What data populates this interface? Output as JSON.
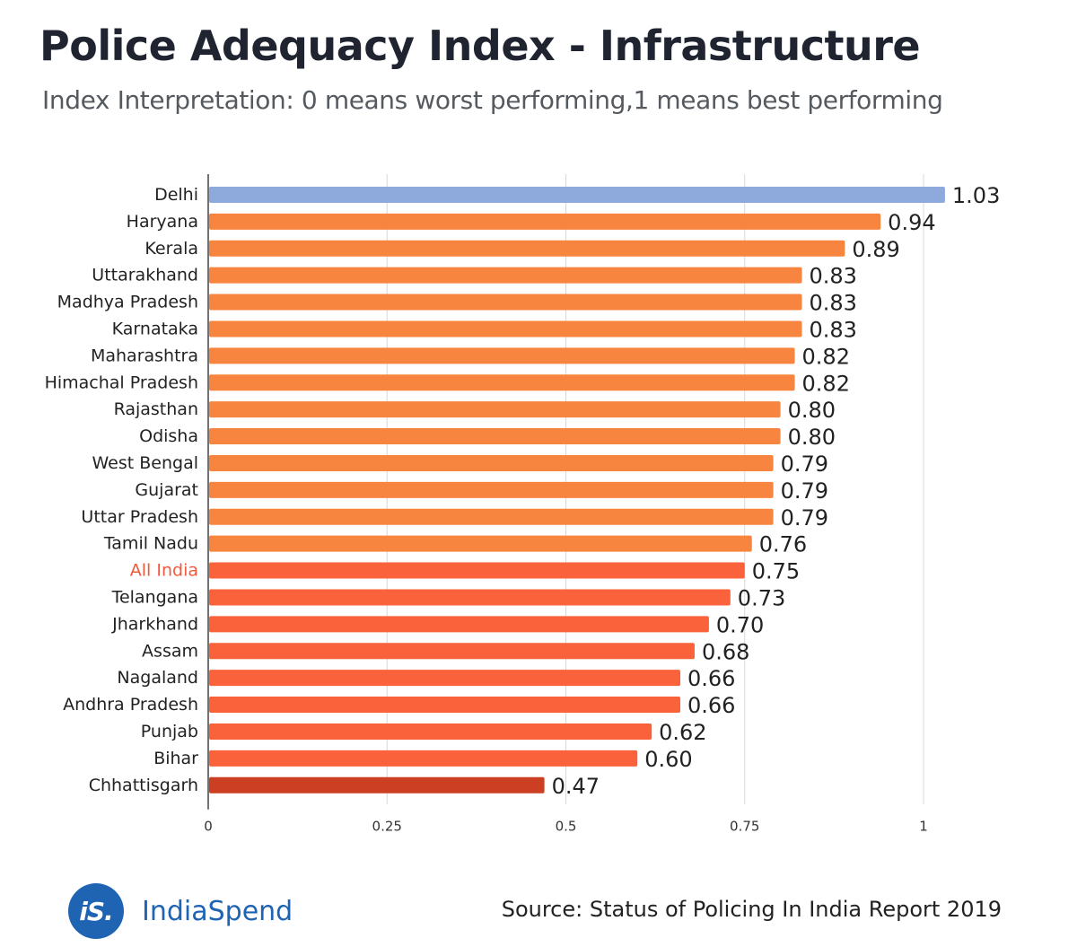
{
  "header": {
    "title": "Police Adequacy Index - Infrastructure",
    "subtitle": "Index Interpretation: 0 means worst performing,1 means best performing"
  },
  "footer": {
    "logo_text": "iS.",
    "brand": "IndiaSpend",
    "source": "Source: Status of Policing In India Report 2019"
  },
  "colors": {
    "highlight": "#8ea9dc",
    "bar_light": "#f7853f",
    "bar_mid": "#f9623a",
    "bar_dark": "#cc3f22",
    "all_india_label": "#f05a3c",
    "axis": "#444444",
    "grid": "#d8d8d8"
  },
  "chart_data": {
    "type": "bar",
    "orientation": "horizontal",
    "title": "Police Adequacy Index - Infrastructure",
    "xlim": [
      0,
      1.03
    ],
    "xticks": [
      0,
      0.25,
      0.5,
      0.75,
      1
    ],
    "xtick_labels": [
      "0",
      "0.25",
      "0.5",
      "0.75",
      "1"
    ],
    "grid": true,
    "categories": [
      "Delhi",
      "Haryana",
      "Kerala",
      "Uttarakhand",
      "Madhya Pradesh",
      "Karnataka",
      "Maharashtra",
      "Himachal Pradesh",
      "Rajasthan",
      "Odisha",
      "West Bengal",
      "Gujarat",
      "Uttar Pradesh",
      "Tamil Nadu",
      "All India",
      "Telangana",
      "Jharkhand",
      "Assam",
      "Nagaland",
      "Andhra Pradesh",
      "Punjab",
      "Bihar",
      "Chhattisgarh"
    ],
    "values": [
      1.03,
      0.94,
      0.89,
      0.83,
      0.83,
      0.83,
      0.82,
      0.82,
      0.8,
      0.8,
      0.79,
      0.79,
      0.79,
      0.76,
      0.75,
      0.73,
      0.7,
      0.68,
      0.66,
      0.66,
      0.62,
      0.6,
      0.47
    ],
    "value_labels": [
      "1.03",
      "0.94",
      "0.89",
      "0.83",
      "0.83",
      "0.83",
      "0.82",
      "0.82",
      "0.80",
      "0.80",
      "0.79",
      "0.79",
      "0.79",
      "0.76",
      "0.75",
      "0.73",
      "0.70",
      "0.68",
      "0.66",
      "0.66",
      "0.62",
      "0.60",
      "0.47"
    ],
    "highlight": "Delhi",
    "reference_category": "All India"
  }
}
